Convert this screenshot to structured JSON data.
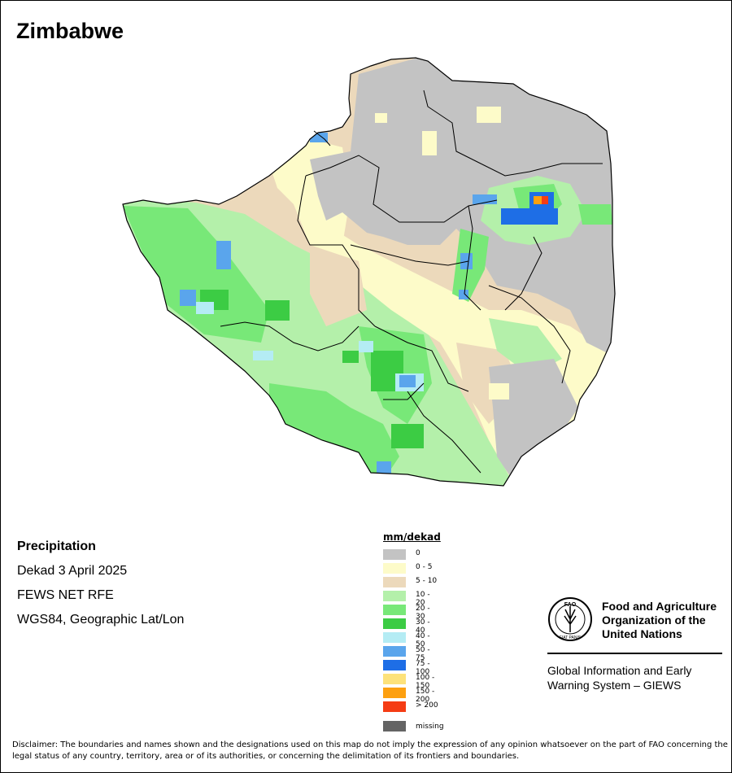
{
  "header": {
    "title": "Zimbabwe"
  },
  "info": {
    "heading": "Precipitation",
    "period": "Dekad 3 April 2025",
    "source": "FEWS NET RFE",
    "projection": "WGS84, Geographic Lat/Lon"
  },
  "legend": {
    "title": "mm/dekad",
    "classes": [
      {
        "label": "0",
        "color": "#c3c3c3"
      },
      {
        "label": "0 - 5",
        "color": "#fdfbc9"
      },
      {
        "label": "5 - 10",
        "color": "#ecd9bb"
      },
      {
        "label": "10 - 20",
        "color": "#b4f0aa"
      },
      {
        "label": "20 - 30",
        "color": "#78e878"
      },
      {
        "label": "30 - 40",
        "color": "#3ccc44"
      },
      {
        "label": "40 - 50",
        "color": "#b4ecf4"
      },
      {
        "label": "50 - 75",
        "color": "#5aa5ec"
      },
      {
        "label": "75 - 100",
        "color": "#1e6ee6"
      },
      {
        "label": "100 - 150",
        "color": "#fde27a"
      },
      {
        "label": "150 - 200",
        "color": "#fda010"
      },
      {
        "label": "> 200",
        "color": "#f53c14"
      }
    ],
    "missing": {
      "label": "missing",
      "color": "#646464"
    }
  },
  "logo": {
    "org_name": "Food and Agriculture Organization of the United Nations",
    "emblem_text": "FAO",
    "emblem_motto": "FIAT PANIS",
    "system_name": "Global Information and Early Warning System – GIEWS"
  },
  "disclaimer": "Disclaimer: The boundaries and names shown and the designations used on this map do not imply the expression of any opinion whatsoever on the part of FAO concerning the legal status of any country, territory, area or of its authorities, or concerning the delimitation of its frontiers and boundaries."
}
